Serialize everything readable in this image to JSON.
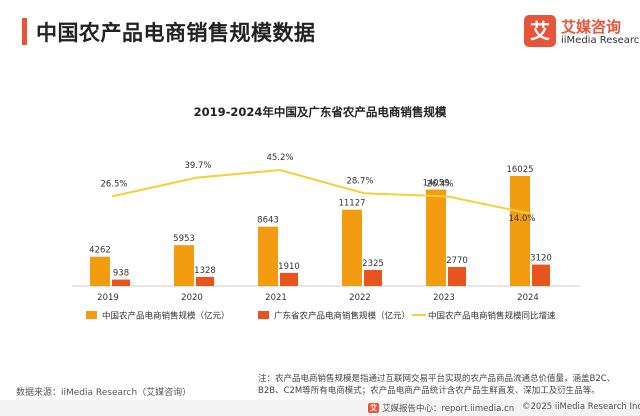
{
  "header": {
    "title": "中国农产品电商销售规模数据",
    "accent_color": "#e8543a"
  },
  "brand": {
    "badge_char": "艾",
    "name_cn": "艾媒咨询",
    "name_en": "iiMedia Research",
    "color": "#e8543a"
  },
  "chart_data": {
    "type": "bar",
    "title": "2019-2024年中国及广东省农产品电商销售规模",
    "categories": [
      "2019",
      "2020",
      "2021",
      "2022",
      "2023",
      "2024"
    ],
    "series": [
      {
        "name": "中国农产品电商销售规模（亿元）",
        "kind": "bar",
        "color": "#f39c12",
        "values": [
          4262,
          5953,
          8643,
          11127,
          14059,
          16025
        ]
      },
      {
        "name": "广东省农产品电商销售规模（亿元）",
        "kind": "bar",
        "color": "#e8541e",
        "values": [
          938,
          1328,
          1910,
          2325,
          2770,
          3120
        ]
      },
      {
        "name": "中国农产品电商销售规模同比增速",
        "kind": "line",
        "color": "#f5d03a",
        "values": [
          26.5,
          39.7,
          45.2,
          28.7,
          26.4,
          14.0
        ],
        "labels": [
          "26.5%",
          "39.7%",
          "45.2%",
          "28.7%",
          "26.4%",
          "14.0%"
        ]
      }
    ],
    "legend_position": "bottom",
    "grid": false
  },
  "footer": {
    "source": "数据来源：iiMedia Research（艾媒咨询）",
    "note": "注：农产品电商销售规模是指通过互联网交易平台实现的农产品商品流通总价值量，涵盖B2C、B2B、C2M等所有电商模式；农产品电商产品统计含农产品生鲜直发、深加工及衍生品等。",
    "report_center": "艾媒报告中心：report.iimedia.cn",
    "copyright": "©2025  iiMedia Research  Inc",
    "badge_char": "艾"
  }
}
